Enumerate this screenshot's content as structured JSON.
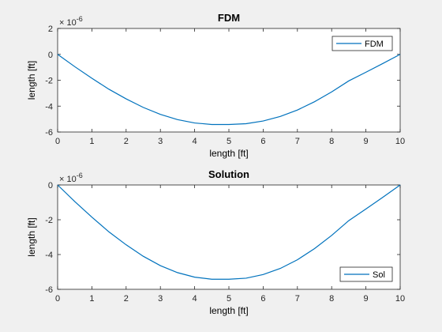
{
  "chart_data": [
    {
      "type": "line",
      "title": "FDM",
      "xlabel": "length [ft]",
      "ylabel": "length [ft]",
      "xlim": [
        0,
        10
      ],
      "ylim": [
        -6e-06,
        2e-06
      ],
      "xticks": [
        0,
        1,
        2,
        3,
        4,
        5,
        6,
        7,
        8,
        9,
        10
      ],
      "yticks": [
        -6,
        -4,
        -2,
        0,
        2
      ],
      "ytick_labels": [
        "-6",
        "-4",
        "-2",
        "0",
        "2"
      ],
      "y_exponent_base": "× 10",
      "y_exponent": "-6",
      "grid": false,
      "legend_position": "top-right",
      "series": [
        {
          "name": "FDM",
          "color": "#0072bd",
          "x": [
            0,
            0.5,
            1,
            1.5,
            2,
            2.5,
            3,
            3.5,
            4,
            4.5,
            5,
            5.5,
            6,
            6.5,
            7,
            7.5,
            8,
            8.5,
            9,
            9.5,
            10
          ],
          "y": [
            0,
            -9.5e-07,
            -1.85e-06,
            -2.7e-06,
            -3.44e-06,
            -4.1e-06,
            -4.64e-06,
            -5.04e-06,
            -5.3e-06,
            -5.42e-06,
            -5.42e-06,
            -5.36e-06,
            -5.15e-06,
            -4.8e-06,
            -4.3e-06,
            -3.66e-06,
            -2.9e-06,
            -2.05e-06,
            -1.38e-06,
            -7e-07,
            0
          ]
        }
      ]
    },
    {
      "type": "line",
      "title": "Solution",
      "xlabel": "length [ft]",
      "ylabel": "length [ft]",
      "xlim": [
        0,
        10
      ],
      "ylim": [
        -6e-06,
        0
      ],
      "xticks": [
        0,
        1,
        2,
        3,
        4,
        5,
        6,
        7,
        8,
        9,
        10
      ],
      "yticks": [
        -6,
        -4,
        -2,
        0
      ],
      "ytick_labels": [
        "-6",
        "-4",
        "-2",
        "0"
      ],
      "y_exponent_base": "× 10",
      "y_exponent": "-6",
      "grid": false,
      "legend_position": "bottom-right",
      "series": [
        {
          "name": "Sol",
          "color": "#0072bd",
          "x": [
            0,
            0.5,
            1,
            1.5,
            2,
            2.5,
            3,
            3.5,
            4,
            4.5,
            5,
            5.5,
            6,
            6.5,
            7,
            7.5,
            8,
            8.5,
            9,
            9.5,
            10
          ],
          "y": [
            0,
            -9.5e-07,
            -1.85e-06,
            -2.7e-06,
            -3.44e-06,
            -4.1e-06,
            -4.64e-06,
            -5.04e-06,
            -5.3e-06,
            -5.42e-06,
            -5.42e-06,
            -5.36e-06,
            -5.15e-06,
            -4.8e-06,
            -4.3e-06,
            -3.66e-06,
            -2.9e-06,
            -2.05e-06,
            -1.38e-06,
            -7e-07,
            0
          ]
        }
      ]
    }
  ]
}
